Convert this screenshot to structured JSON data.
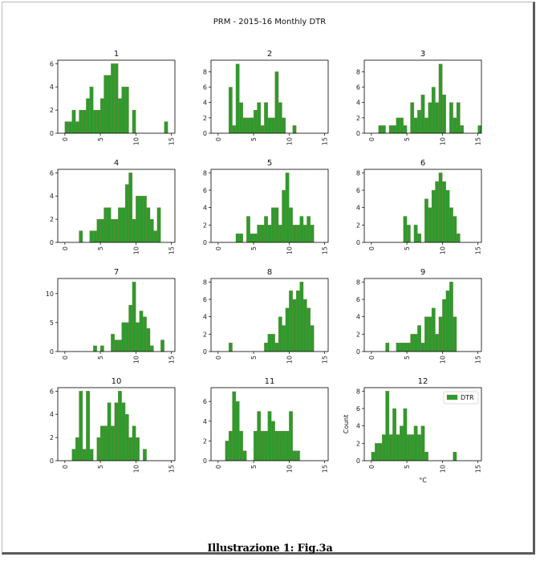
{
  "caption": "Illustrazione 1: Fig.3a",
  "colors": {
    "bar": "#2e9a2e",
    "bar_edge": "#8a7a3a",
    "frame": "#000000"
  },
  "chart_data": {
    "type": "bar",
    "title": "PRM - 2015-16 Monthly DTR",
    "xlabel": "°C",
    "ylabel": "Count",
    "legend": {
      "label": "DTR",
      "placement": "top-right",
      "panel": "12"
    },
    "xlim": [
      -1,
      15.5
    ],
    "xticks": [
      0,
      5,
      10,
      15
    ],
    "bin_width": 0.5,
    "panels": [
      {
        "title": "1",
        "ylim": [
          0,
          6.3
        ],
        "yticks": [
          0,
          2,
          4,
          6
        ],
        "bins_start": 0,
        "values": [
          1,
          1,
          2,
          1,
          2,
          2,
          3,
          4,
          2,
          2,
          3,
          5,
          5,
          6,
          6,
          3,
          4,
          4,
          0,
          2,
          0,
          0,
          0,
          0,
          0,
          0,
          0,
          0,
          1
        ]
      },
      {
        "title": "2",
        "ylim": [
          0,
          9.5
        ],
        "yticks": [
          0,
          2,
          4,
          6,
          8
        ],
        "bins_start": 1.5,
        "values": [
          6,
          1,
          9,
          4,
          2,
          2,
          2,
          3,
          4,
          1,
          4,
          2,
          2,
          8,
          4,
          2,
          0,
          0,
          1
        ]
      },
      {
        "title": "3",
        "ylim": [
          0,
          9.5
        ],
        "yticks": [
          0,
          2,
          4,
          6,
          8
        ],
        "bins_start": 1,
        "values": [
          1,
          1,
          0,
          1,
          1,
          2,
          2,
          1,
          0,
          4,
          2,
          3,
          5,
          2,
          4,
          6,
          4,
          9,
          5,
          0,
          4,
          2,
          4,
          1,
          0,
          0,
          0,
          0,
          1
        ]
      },
      {
        "title": "4",
        "ylim": [
          0,
          6.3
        ],
        "yticks": [
          0,
          2,
          4,
          6
        ],
        "bins_start": 2,
        "values": [
          1,
          0,
          0,
          1,
          1,
          2,
          2,
          3,
          3,
          2,
          2,
          3,
          3,
          5,
          6,
          2,
          4,
          4,
          4,
          3,
          2,
          1,
          3
        ]
      },
      {
        "title": "5",
        "ylim": [
          0,
          8.4
        ],
        "yticks": [
          0,
          2,
          4,
          6,
          8
        ],
        "bins_start": 2.5,
        "values": [
          1,
          1,
          0,
          3,
          1,
          1,
          2,
          2,
          3,
          2,
          4,
          4,
          2,
          6,
          8,
          4,
          2,
          2,
          3,
          2,
          3,
          2
        ]
      },
      {
        "title": "6",
        "ylim": [
          0,
          8.4
        ],
        "yticks": [
          0,
          2,
          4,
          6,
          8
        ],
        "bins_start": 4.5,
        "values": [
          3,
          2,
          0,
          2,
          1,
          0,
          5,
          4,
          6,
          7,
          8,
          7,
          6,
          4,
          3,
          1
        ]
      },
      {
        "title": "7",
        "ylim": [
          0,
          12.6
        ],
        "yticks": [
          0,
          5,
          10
        ],
        "bins_start": 4,
        "values": [
          1,
          0,
          1,
          0,
          0,
          3,
          2,
          2,
          5,
          5,
          8,
          12,
          5,
          7,
          6,
          4,
          1,
          0,
          0,
          2
        ]
      },
      {
        "title": "8",
        "ylim": [
          0,
          8.4
        ],
        "yticks": [
          0,
          2,
          4,
          6,
          8
        ],
        "bins_start": 1.5,
        "values": [
          1,
          0,
          0,
          0,
          0,
          0,
          0,
          0,
          0,
          0,
          1,
          2,
          2,
          1,
          4,
          3,
          5,
          7,
          6,
          7,
          8,
          6,
          5,
          3
        ]
      },
      {
        "title": "9",
        "ylim": [
          0,
          8.4
        ],
        "yticks": [
          0,
          2,
          4,
          6,
          8
        ],
        "bins_start": 2,
        "values": [
          1,
          0,
          0,
          1,
          1,
          1,
          1,
          2,
          2,
          3,
          1,
          4,
          4,
          5,
          2,
          4,
          6,
          7,
          8,
          4
        ]
      },
      {
        "title": "10",
        "ylim": [
          0,
          6.3
        ],
        "yticks": [
          0,
          2,
          4,
          6
        ],
        "bins_start": 1,
        "values": [
          1,
          2,
          6,
          1,
          6,
          1,
          0,
          2,
          3,
          3,
          5,
          3,
          5,
          6,
          5,
          4,
          2,
          3,
          2,
          0,
          1
        ]
      },
      {
        "title": "11",
        "ylim": [
          0,
          7.4
        ],
        "yticks": [
          0,
          2,
          4,
          6
        ],
        "bins_start": 1,
        "values": [
          2,
          3,
          7,
          6,
          3,
          1,
          0,
          0,
          3,
          5,
          3,
          3,
          5,
          4,
          3,
          3,
          3,
          3,
          5,
          1,
          1
        ]
      },
      {
        "title": "12",
        "ylim": [
          0,
          8.4
        ],
        "yticks": [
          0,
          2,
          4,
          6,
          8
        ],
        "bins_start": 0,
        "values": [
          1,
          2,
          2,
          3,
          8,
          3,
          6,
          3,
          4,
          6,
          3,
          3,
          4,
          3,
          4,
          1,
          0,
          0,
          0,
          0,
          0,
          0,
          0,
          1
        ]
      }
    ]
  }
}
